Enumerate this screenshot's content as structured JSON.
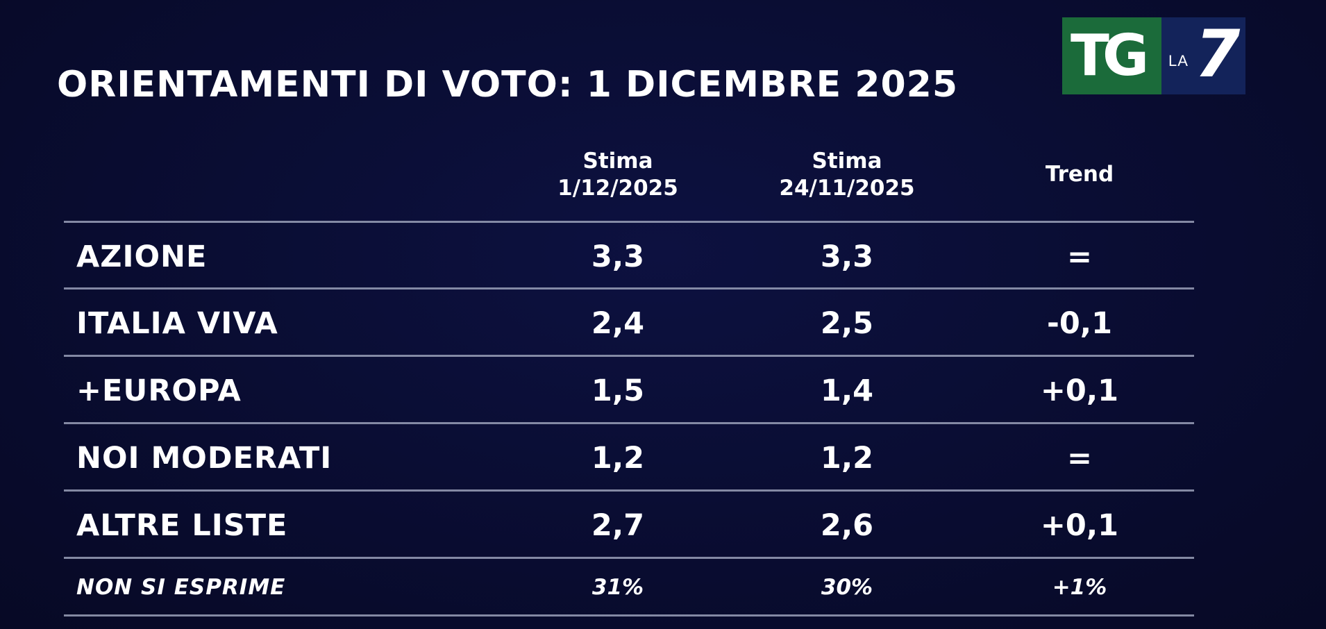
{
  "title": "ORIENTAMENTI DI VOTO: 1 DICEMBRE 2025",
  "logo": {
    "tg": "TG",
    "la": "LA",
    "seven": "7",
    "colors": {
      "tg": "#1b6b3a",
      "la7": "#13235a"
    }
  },
  "colors": {
    "background": "#0a0d33",
    "text": "#ffffff",
    "rule": "#9aa0b8"
  },
  "chart_data": {
    "type": "table",
    "title": "ORIENTAMENTI DI VOTO: 1 DICEMBRE 2025",
    "columns": [
      {
        "line1": "Stima",
        "line2": "1/12/2025"
      },
      {
        "line1": "Stima",
        "line2": "24/11/2025"
      },
      {
        "line1": "Trend",
        "line2": ""
      }
    ],
    "rows": [
      {
        "label": "AZIONE",
        "v1": "3,3",
        "v2": "3,3",
        "trend": "="
      },
      {
        "label": "ITALIA VIVA",
        "v1": "2,4",
        "v2": "2,5",
        "trend": "-0,1"
      },
      {
        "label": "+EUROPA",
        "v1": "1,5",
        "v2": "1,4",
        "trend": "+0,1"
      },
      {
        "label": "NOI MODERATI",
        "v1": "1,2",
        "v2": "1,2",
        "trend": "="
      },
      {
        "label": "ALTRE LISTE",
        "v1": "2,7",
        "v2": "2,6",
        "trend": "+0,1"
      },
      {
        "label": "NON SI ESPRIME",
        "v1": "31%",
        "v2": "30%",
        "trend": "+1%"
      }
    ]
  }
}
